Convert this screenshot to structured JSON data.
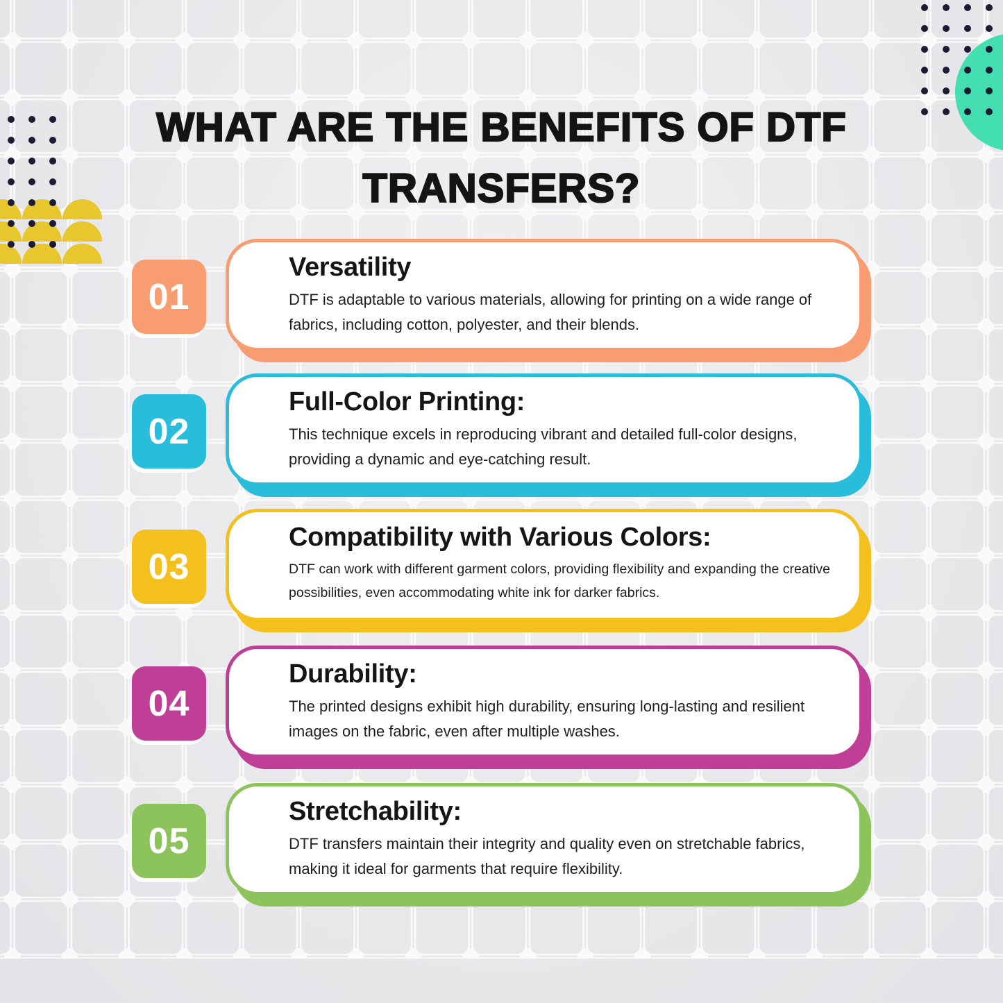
{
  "title": {
    "line1": "WHAT ARE THE BENEFITS OF DTF",
    "line2": "TRANSFERS?"
  },
  "benefits": [
    {
      "number": "01",
      "heading": "Versatility",
      "body": "DTF is adaptable to various materials, allowing for printing on a wide range of fabrics, including cotton, polyester, and their blends.",
      "color": "#F89C71"
    },
    {
      "number": "02",
      "heading": "Full-Color Printing:",
      "body": "This technique excels in reproducing vibrant and detailed full-color designs, providing a dynamic and eye-catching result.",
      "color": "#29BDDC"
    },
    {
      "number": "03",
      "heading": "Compatibility with Various Colors:",
      "body": "DTF can work with different garment colors, providing flexibility and expanding the creative possibilities, even accommodating white ink for darker fabrics.",
      "color": "#F3C01E"
    },
    {
      "number": "04",
      "heading": "Durability:",
      "body": "The printed designs exhibit high durability, ensuring long-lasting and resilient images on the fabric, even after multiple washes.",
      "color": "#C03F96"
    },
    {
      "number": "05",
      "heading": "Stretchability:",
      "body": "DTF transfers maintain their integrity and quality even on stretchable fabrics, making it ideal for garments that require flexibility.",
      "color": "#8CC45B"
    }
  ],
  "colors": {
    "text_dark": "#141414",
    "dot_navy": "#1D1A33",
    "circle_teal": "#43DFB1",
    "scallop_yellow": "#E8C62E",
    "grid_line": "#FAFAFB"
  }
}
